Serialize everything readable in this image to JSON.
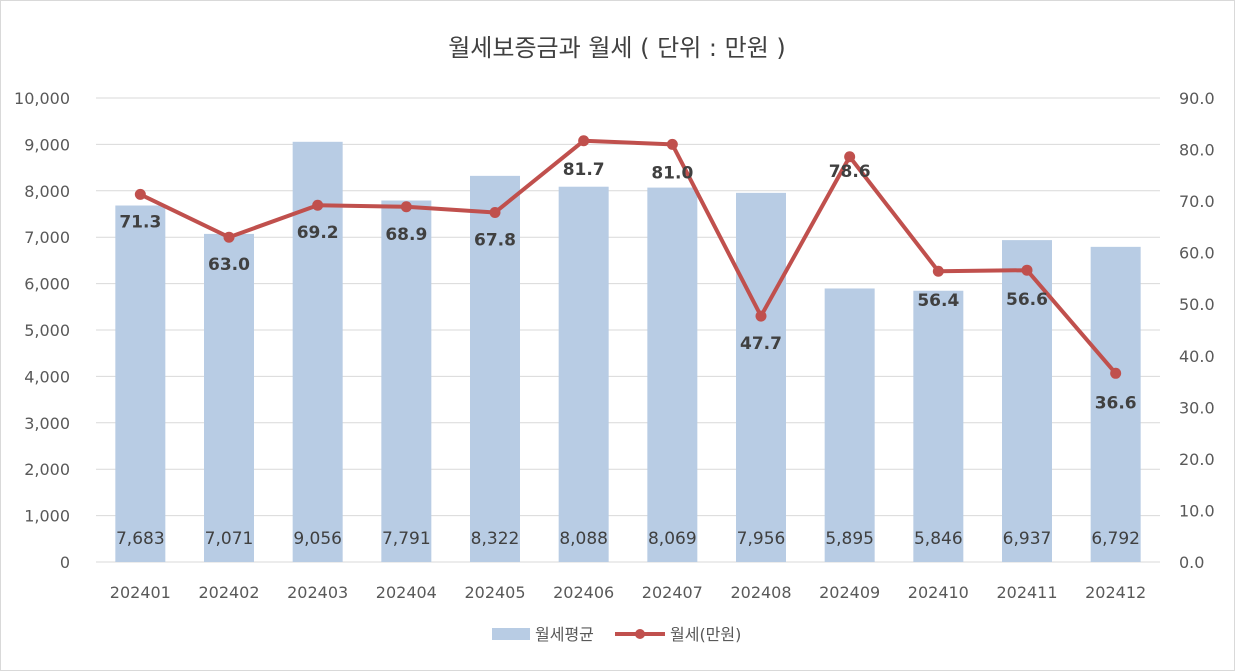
{
  "chart_data": {
    "type": "bar",
    "title": "월세보증금과 월세 ( 단위 : 만원 )",
    "categories": [
      "202401",
      "202402",
      "202403",
      "202404",
      "202405",
      "202406",
      "202407",
      "202408",
      "202409",
      "202410",
      "202411",
      "202412"
    ],
    "series": [
      {
        "name": "월세평균",
        "type": "bar",
        "axis": "left",
        "color": "#b8cce4",
        "values": [
          7683,
          7071,
          9056,
          7791,
          8322,
          8088,
          8069,
          7956,
          5895,
          5846,
          6937,
          6792
        ],
        "labels": [
          "7,683",
          "7,071",
          "9,056",
          "7,791",
          "8,322",
          "8,088",
          "8,069",
          "7,956",
          "5,895",
          "5,846",
          "6,937",
          "6,792"
        ]
      },
      {
        "name": "월세(만원)",
        "type": "line",
        "axis": "right",
        "color": "#c0504d",
        "values": [
          71.3,
          63.0,
          69.2,
          68.9,
          67.8,
          81.7,
          81.0,
          47.7,
          78.6,
          56.4,
          56.6,
          36.6
        ],
        "labels": [
          "71.3",
          "63.0",
          "69.2",
          "68.9",
          "67.8",
          "81.7",
          "81.0",
          "47.7",
          "78.6",
          "56.4",
          "56.6",
          "36.6"
        ]
      }
    ],
    "y_left": {
      "min": 0,
      "max": 10000,
      "ticks": [
        "0",
        "1,000",
        "2,000",
        "3,000",
        "4,000",
        "5,000",
        "6,000",
        "7,000",
        "8,000",
        "9,000",
        "10,000"
      ]
    },
    "y_right": {
      "min": 0,
      "max": 90,
      "ticks": [
        "0.0",
        "10.0",
        "20.0",
        "30.0",
        "40.0",
        "50.0",
        "60.0",
        "70.0",
        "80.0",
        "90.0"
      ]
    },
    "grid": true,
    "legend_position": "bottom"
  }
}
